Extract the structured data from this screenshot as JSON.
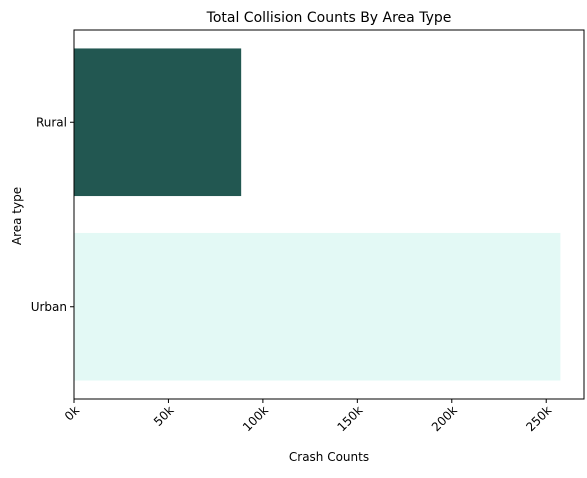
{
  "chart_data": {
    "type": "bar",
    "orientation": "horizontal",
    "title": "Total Collision Counts  By Area Type",
    "xlabel": "Crash Counts",
    "ylabel": "Area type",
    "categories": [
      "Rural",
      "Urban"
    ],
    "values": [
      88500,
      257500
    ],
    "bar_colors": [
      "#225751",
      "#e3f9f5"
    ],
    "xlim": [
      0,
      270000
    ],
    "x_ticks": [
      0,
      50000,
      100000,
      150000,
      200000,
      250000
    ],
    "x_tick_labels": [
      "0k",
      "50k",
      "100k",
      "150k",
      "200k",
      "250k"
    ],
    "grid": false,
    "legend": "none"
  }
}
